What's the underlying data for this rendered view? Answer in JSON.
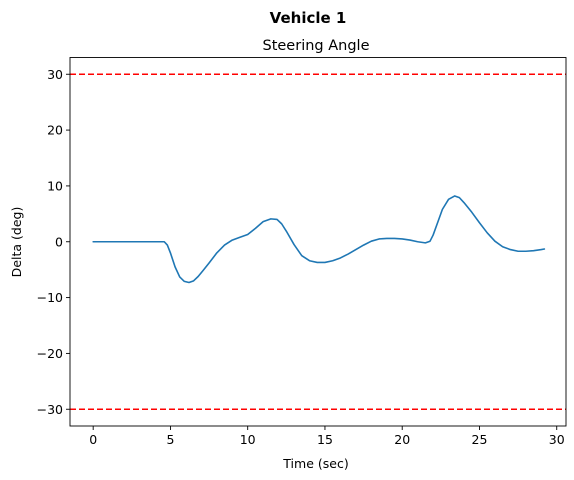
{
  "chart_data": {
    "type": "line",
    "suptitle": "Vehicle 1",
    "title": "Steering Angle",
    "xlabel": "Time (sec)",
    "ylabel": "Delta (deg)",
    "xlim": [
      -1.5,
      30.6
    ],
    "ylim": [
      -33,
      33
    ],
    "xticks": [
      0,
      5,
      10,
      15,
      20,
      25,
      30
    ],
    "yticks": [
      -30,
      -20,
      -10,
      0,
      10,
      20,
      30
    ],
    "xtick_labels": [
      "0",
      "5",
      "10",
      "15",
      "20",
      "25",
      "30"
    ],
    "ytick_labels": [
      "−30",
      "−20",
      "−10",
      "0",
      "10",
      "20",
      "30"
    ],
    "grid": false,
    "series": [
      {
        "color": "#1f77b4",
        "x": [
          0,
          1,
          2,
          3,
          4,
          4.6,
          4.8,
          5.0,
          5.3,
          5.6,
          5.9,
          6.2,
          6.5,
          6.8,
          7.1,
          7.5,
          8.0,
          8.5,
          9.0,
          9.5,
          10.0,
          10.5,
          11.0,
          11.5,
          11.9,
          12.2,
          12.5,
          13.0,
          13.5,
          14.0,
          14.5,
          15.0,
          15.5,
          16.0,
          16.5,
          17.0,
          17.5,
          18.0,
          18.5,
          19.0,
          19.5,
          20.0,
          20.5,
          21.0,
          21.5,
          21.8,
          22.0,
          22.3,
          22.6,
          23.0,
          23.4,
          23.7,
          24.0,
          24.5,
          25.0,
          25.5,
          26.0,
          26.5,
          27.0,
          27.5,
          28.0,
          28.5,
          29.0,
          29.2
        ],
        "y": [
          0,
          0,
          0,
          0,
          0,
          0,
          -0.6,
          -2.0,
          -4.5,
          -6.3,
          -7.1,
          -7.3,
          -7.0,
          -6.2,
          -5.2,
          -3.8,
          -2.0,
          -0.6,
          0.3,
          0.8,
          1.3,
          2.4,
          3.6,
          4.1,
          4.0,
          3.2,
          1.9,
          -0.5,
          -2.5,
          -3.4,
          -3.7,
          -3.7,
          -3.4,
          -2.9,
          -2.2,
          -1.4,
          -0.6,
          0.1,
          0.5,
          0.6,
          0.6,
          0.5,
          0.3,
          0.0,
          -0.2,
          0.1,
          1.2,
          3.5,
          5.8,
          7.6,
          8.2,
          7.9,
          7.0,
          5.3,
          3.4,
          1.6,
          0.1,
          -0.9,
          -1.4,
          -1.7,
          -1.7,
          -1.6,
          -1.4,
          -1.3
        ]
      }
    ],
    "hlines": [
      {
        "y": 30,
        "color": "#ff0000",
        "style": "dashed"
      },
      {
        "y": -30,
        "color": "#ff0000",
        "style": "dashed"
      }
    ]
  }
}
